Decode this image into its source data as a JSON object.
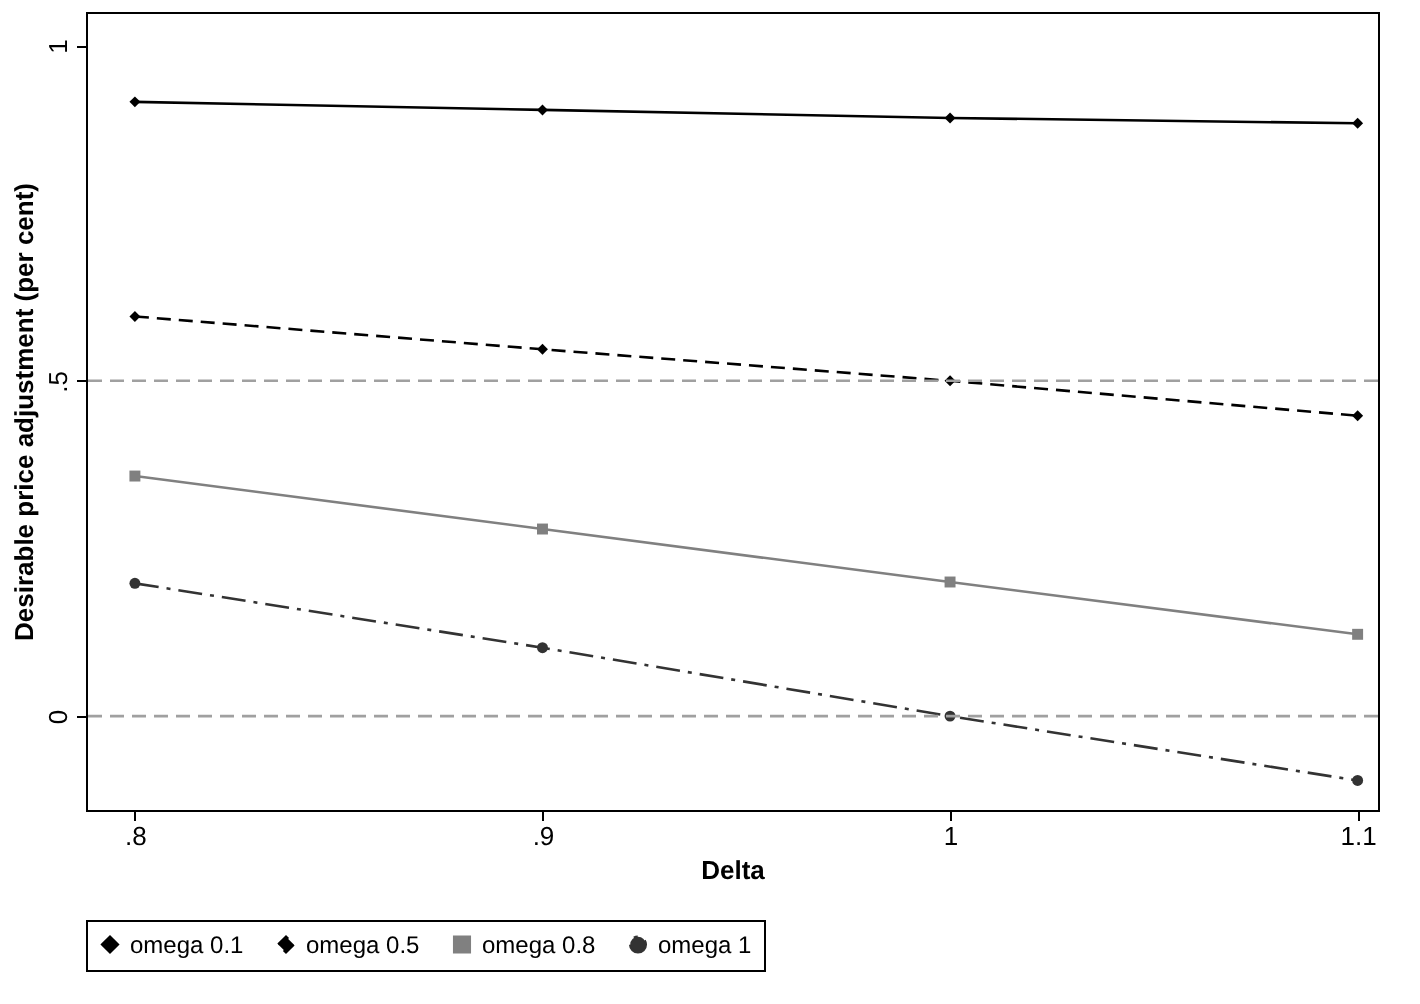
{
  "chart_data": {
    "type": "line",
    "xlabel": "Delta",
    "ylabel": "Desirable price adjustment (per cent)",
    "x": [
      0.8,
      0.9,
      1,
      1.1
    ],
    "xlim": [
      0.788,
      1.105
    ],
    "xticks": [
      {
        "value": 0.8,
        "label": ".8"
      },
      {
        "value": 0.9,
        "label": ".9"
      },
      1,
      1.1
    ],
    "ylim": [
      -0.14,
      1.05
    ],
    "yticks": [
      0,
      {
        "value": 0.5,
        "label": ".5"
      },
      1
    ],
    "series": [
      {
        "name": "omega 0.1",
        "color": "#000000",
        "marker": "diamond",
        "line_style": "solid",
        "values": [
          0.916,
          0.904,
          0.892,
          0.884
        ]
      },
      {
        "name": "omega 0.5",
        "color": "#000000",
        "marker": "diamond",
        "line_style": "dashed",
        "values": [
          0.596,
          0.547,
          0.5,
          0.448
        ]
      },
      {
        "name": "omega 0.8",
        "color": "#808080",
        "marker": "square",
        "line_style": "solid",
        "values": [
          0.358,
          0.279,
          0.2,
          0.122
        ]
      },
      {
        "name": "omega 1",
        "color": "#333333",
        "marker": "circle",
        "line_style": "dashdot",
        "values": [
          0.198,
          0.102,
          0,
          -0.096
        ]
      }
    ],
    "ref_lines": [
      {
        "axis": "y",
        "value": 0,
        "color": "#a0a0a0",
        "line_style": "dashed"
      },
      {
        "axis": "y",
        "value": 0.5,
        "color": "#a0a0a0",
        "line_style": "dashed"
      }
    ],
    "legend": "bottom",
    "grid": false
  }
}
